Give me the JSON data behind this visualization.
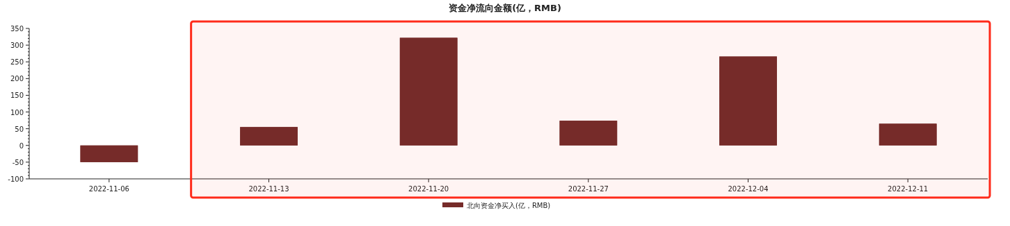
{
  "chart_data": {
    "type": "bar",
    "title": "资金净流向金额(亿，RMB)",
    "categories": [
      "2022-11-06",
      "2022-11-13",
      "2022-11-20",
      "2022-11-27",
      "2022-12-04",
      "2022-12-11"
    ],
    "series": [
      {
        "name": "北向资金净买入(亿，RMB)",
        "color": "#762b29",
        "values": [
          -50,
          55,
          322,
          74,
          266,
          65
        ]
      }
    ],
    "ylim": [
      -100,
      350
    ],
    "yticks": [
      -100,
      -50,
      0,
      50,
      100,
      150,
      200,
      250,
      300,
      350
    ],
    "bands": [
      {
        "axis": "x",
        "from": "2022-11-13",
        "to": "2022-12-11",
        "color": "#ff2a1a"
      }
    ],
    "legend": "bottom",
    "grid": false
  }
}
